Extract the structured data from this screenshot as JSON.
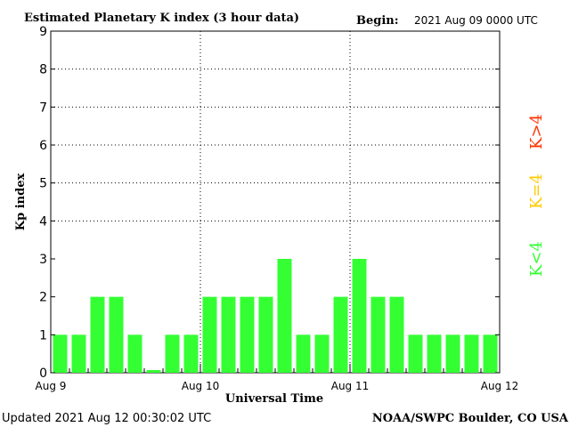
{
  "header": {
    "title": "Estimated Planetary K index (3 hour data)",
    "begin_label": "Begin:",
    "begin_value": "2021 Aug 09 0000 UTC"
  },
  "footer": {
    "updated": "Updated 2021 Aug 12 00:30:02 UTC",
    "source": "NOAA/SWPC Boulder, CO USA"
  },
  "legend": {
    "above": {
      "label": "K>4",
      "color": "#ff3300"
    },
    "equal": {
      "label": "K=4",
      "color": "#ffcc00"
    },
    "below": {
      "label": "K<4",
      "color": "#33ff33"
    }
  },
  "chart_data": {
    "type": "bar",
    "title": "Estimated Planetary K index (3 hour data)",
    "xlabel": "Universal Time",
    "ylabel": "Kp index",
    "ylim": [
      0,
      9
    ],
    "yticks": [
      0,
      1,
      2,
      3,
      4,
      5,
      6,
      7,
      8,
      9
    ],
    "x_tick_labels": [
      "Aug 9",
      "Aug 10",
      "Aug 11",
      "Aug 12"
    ],
    "bin_hours": 3,
    "values": [
      1,
      1,
      2,
      2,
      1,
      0.07,
      1,
      1,
      2,
      2,
      2,
      2,
      3,
      1,
      1,
      2,
      3,
      2,
      2,
      1,
      1,
      1,
      1,
      1
    ],
    "bar_color": "#33ff33",
    "grid": "dotted"
  }
}
